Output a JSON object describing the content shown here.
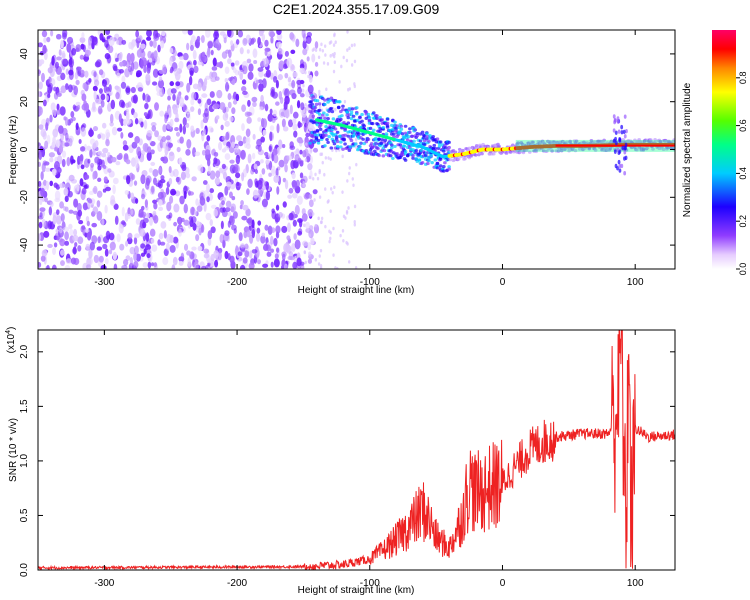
{
  "title": "C2E1.2024.355.17.09.G09",
  "colors": {
    "snr_line": "#ee2222",
    "scatter_base": "#7a2cff",
    "frame": "#000000"
  },
  "chart_data": [
    {
      "type": "heatmap",
      "xlabel": "Height of straight line (km)",
      "ylabel": "Frequency (Hz)",
      "xlim": [
        -350,
        130
      ],
      "ylim": [
        -50,
        50
      ],
      "xticks": [
        -300,
        -200,
        -100,
        0,
        100
      ],
      "yticks": [
        -40,
        -20,
        0,
        20,
        40
      ],
      "xtick_labels": [
        "-300",
        "-200",
        "-100",
        "0",
        "100"
      ],
      "ytick_labels": [
        "-40",
        "-20",
        "0",
        "20",
        "40"
      ],
      "colorbar": {
        "label": "Normalized spectral amplitude",
        "range": [
          0,
          1
        ],
        "ticks": [
          0.0,
          0.2,
          0.4,
          0.6,
          0.8
        ],
        "tick_labels": [
          "0.0",
          "0.2",
          "0.4",
          "0.6",
          "0.8"
        ],
        "colormap": "rainbow"
      },
      "ridge": {
        "x": [
          -145,
          -120,
          -100,
          -80,
          -60,
          -45,
          -30,
          -15,
          0,
          20,
          40,
          60,
          80,
          90,
          110,
          130
        ],
        "freq": [
          13,
          10,
          7,
          4,
          1,
          -3,
          -2,
          0,
          0,
          1,
          1.5,
          1.5,
          1.8,
          2,
          2,
          2
        ]
      },
      "grid": false
    },
    {
      "type": "line",
      "xlabel": "Height of straight line (km)",
      "ylabel": "SNR (10 * v/v)",
      "multiplier": "(x10",
      "multiplier_exp": "4",
      "multiplier_close": ")",
      "xlim": [
        -350,
        130
      ],
      "ylim": [
        0,
        2.2
      ],
      "xticks": [
        -300,
        -200,
        -100,
        0,
        100
      ],
      "yticks": [
        0.0,
        0.5,
        1.0,
        1.5,
        2.0
      ],
      "xtick_labels": [
        "-300",
        "-200",
        "-100",
        "0",
        "100"
      ],
      "ytick_labels": [
        "0.0",
        "0.5",
        "1.0",
        "1.5",
        "2.0"
      ],
      "series": [
        {
          "x": [
            -350,
            -150,
            -120,
            -100,
            -90,
            -80,
            -70,
            -60,
            -55,
            -50,
            -40,
            -30,
            -25,
            -20,
            -10,
            0,
            10,
            20,
            30,
            40,
            60,
            80,
            85,
            90,
            93,
            95,
            97,
            100,
            110,
            130
          ],
          "y": [
            0.02,
            0.03,
            0.05,
            0.1,
            0.18,
            0.28,
            0.4,
            0.55,
            0.45,
            0.3,
            0.2,
            0.5,
            0.8,
            0.7,
            0.75,
            0.8,
            0.95,
            1.1,
            1.17,
            1.22,
            1.25,
            1.25,
            1.4,
            2.1,
            0.1,
            2.2,
            0.2,
            1.3,
            1.22,
            1.24
          ]
        }
      ],
      "grid": false
    }
  ]
}
